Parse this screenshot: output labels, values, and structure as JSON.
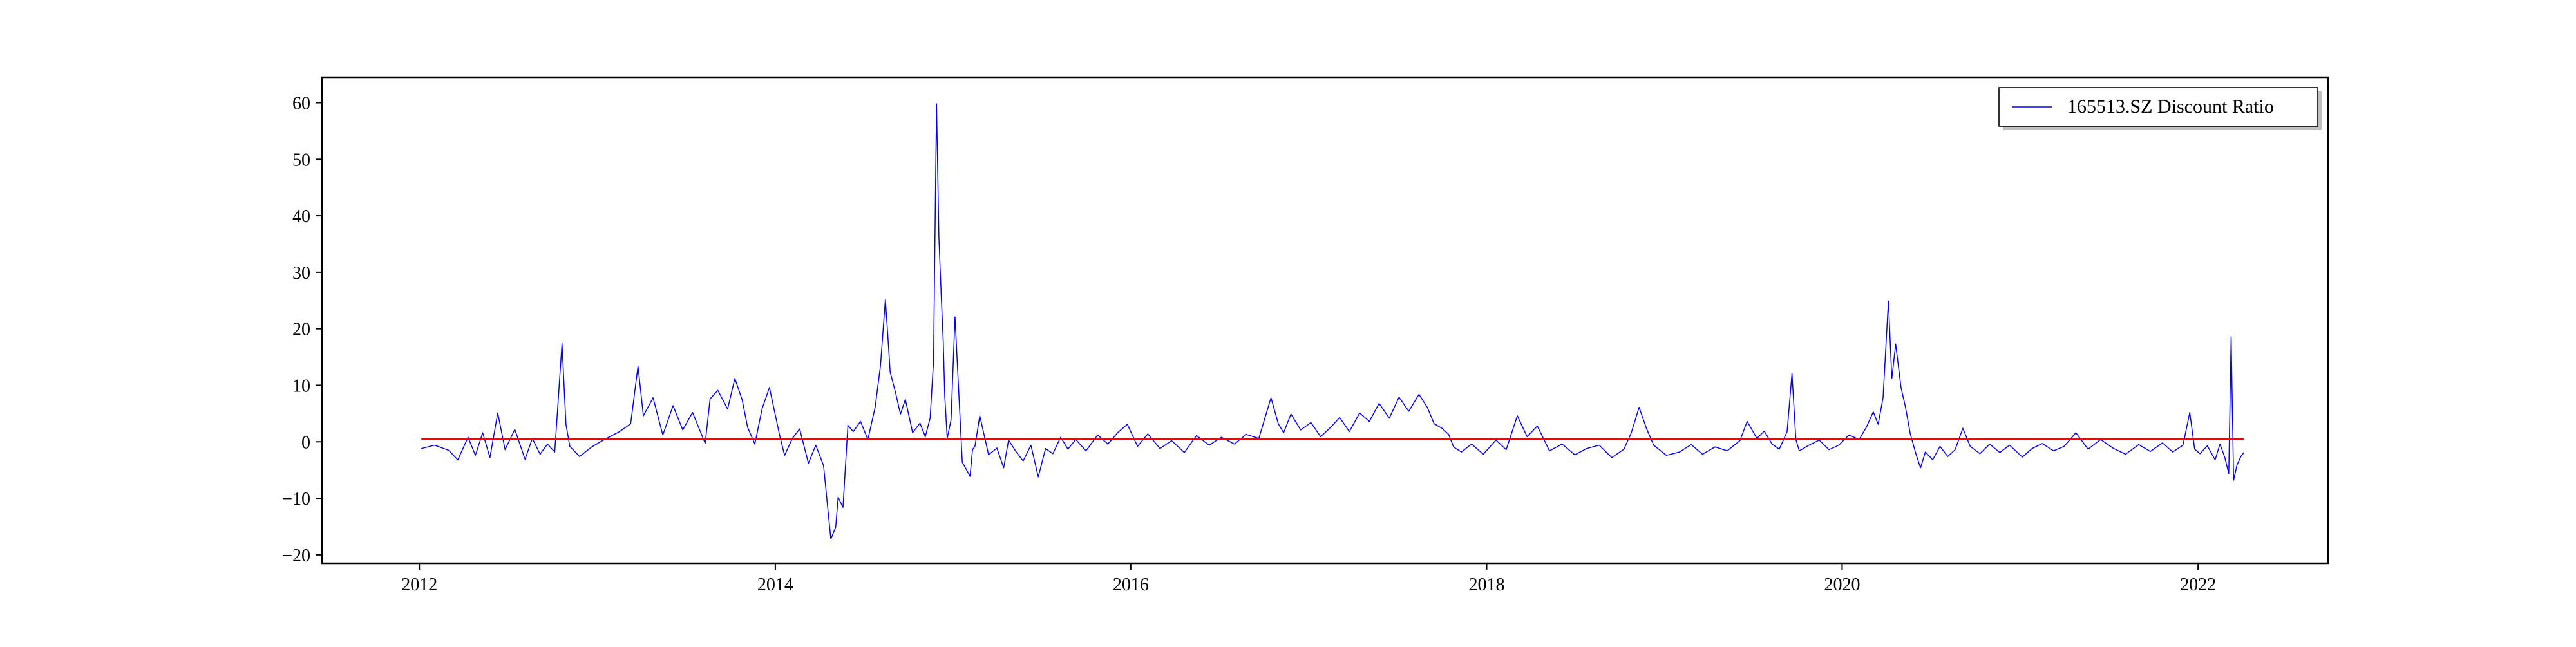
{
  "chart_data": {
    "type": "line",
    "title": "",
    "xlabel": "",
    "ylabel": "",
    "xlim": [
      "2011-06-15",
      "2022-09-25"
    ],
    "ylim": [
      -21.5,
      64.5
    ],
    "xticks": [
      {
        "date": "2012-01-01",
        "label": "2012"
      },
      {
        "date": "2014-01-01",
        "label": "2014"
      },
      {
        "date": "2016-01-01",
        "label": "2016"
      },
      {
        "date": "2018-01-01",
        "label": "2018"
      },
      {
        "date": "2020-01-01",
        "label": "2020"
      },
      {
        "date": "2022-01-01",
        "label": "2022"
      }
    ],
    "yticks": [
      -20,
      -10,
      0,
      10,
      20,
      30,
      40,
      50,
      60
    ],
    "ytick_labels": [
      "−20",
      "−10",
      "0",
      "10",
      "20",
      "30",
      "40",
      "50",
      "60"
    ],
    "grid": false,
    "legend": {
      "position": "top-right",
      "entries": [
        "165513.SZ Discount Ratio"
      ]
    },
    "series": [
      {
        "name": "165513.SZ Discount Ratio",
        "color": "#0000ff",
        "x": [
          "2012-01-05",
          "2012-02-01",
          "2012-03-01",
          "2012-03-20",
          "2012-04-10",
          "2012-04-25",
          "2012-05-10",
          "2012-05-25",
          "2012-06-10",
          "2012-06-25",
          "2012-07-15",
          "2012-08-05",
          "2012-08-20",
          "2012-09-05",
          "2012-09-20",
          "2012-10-05",
          "2012-10-20",
          "2012-10-28",
          "2012-11-05",
          "2012-11-25",
          "2012-12-20",
          "2013-01-15",
          "2013-02-15",
          "2013-03-10",
          "2013-03-25",
          "2013-04-05",
          "2013-04-25",
          "2013-05-15",
          "2013-06-05",
          "2013-06-25",
          "2013-07-15",
          "2013-08-10",
          "2013-08-20",
          "2013-09-05",
          "2013-09-25",
          "2013-10-10",
          "2013-10-25",
          "2013-11-05",
          "2013-11-20",
          "2013-12-05",
          "2013-12-20",
          "2014-01-10",
          "2014-01-20",
          "2014-02-05",
          "2014-02-20",
          "2014-03-10",
          "2014-03-25",
          "2014-04-10",
          "2014-04-25",
          "2014-05-05",
          "2014-05-10",
          "2014-05-20",
          "2014-05-30",
          "2014-06-10",
          "2014-06-25",
          "2014-07-10",
          "2014-07-25",
          "2014-08-05",
          "2014-08-15",
          "2014-08-25",
          "2014-09-05",
          "2014-09-15",
          "2014-09-25",
          "2014-10-10",
          "2014-10-25",
          "2014-11-05",
          "2014-11-15",
          "2014-11-22",
          "2014-11-28",
          "2014-12-03",
          "2014-12-08",
          "2014-12-12",
          "2014-12-15",
          "2014-12-20",
          "2014-12-28",
          "2015-01-05",
          "2015-01-20",
          "2015-02-05",
          "2015-02-10",
          "2015-02-15",
          "2015-02-25",
          "2015-03-15",
          "2015-04-01",
          "2015-04-15",
          "2015-04-25",
          "2015-05-10",
          "2015-05-25",
          "2015-06-10",
          "2015-06-25",
          "2015-07-10",
          "2015-07-25",
          "2015-08-10",
          "2015-08-25",
          "2015-09-10",
          "2015-10-01",
          "2015-10-25",
          "2015-11-15",
          "2015-12-05",
          "2015-12-25",
          "2016-01-15",
          "2016-02-05",
          "2016-03-01",
          "2016-03-25",
          "2016-04-20",
          "2016-05-15",
          "2016-06-10",
          "2016-07-05",
          "2016-08-01",
          "2016-08-25",
          "2016-09-20",
          "2016-10-15",
          "2016-10-30",
          "2016-11-10",
          "2016-11-25",
          "2016-12-15",
          "2017-01-05",
          "2017-01-25",
          "2017-02-15",
          "2017-03-05",
          "2017-03-25",
          "2017-04-15",
          "2017-05-05",
          "2017-05-25",
          "2017-06-15",
          "2017-07-05",
          "2017-07-25",
          "2017-08-15",
          "2017-09-01",
          "2017-09-15",
          "2017-10-01",
          "2017-10-15",
          "2017-10-25",
          "2017-11-10",
          "2017-12-01",
          "2017-12-25",
          "2018-01-20",
          "2018-02-10",
          "2018-03-05",
          "2018-03-25",
          "2018-04-15",
          "2018-05-10",
          "2018-06-05",
          "2018-07-01",
          "2018-07-25",
          "2018-08-20",
          "2018-09-15",
          "2018-10-10",
          "2018-10-25",
          "2018-11-10",
          "2018-11-25",
          "2018-12-10",
          "2019-01-05",
          "2019-02-01",
          "2019-02-25",
          "2019-03-20",
          "2019-04-15",
          "2019-05-10",
          "2019-06-05",
          "2019-06-20",
          "2019-07-10",
          "2019-07-25",
          "2019-08-10",
          "2019-08-25",
          "2019-09-10",
          "2019-09-20",
          "2019-09-28",
          "2019-10-05",
          "2019-10-25",
          "2019-11-15",
          "2019-12-05",
          "2019-12-25",
          "2020-01-15",
          "2020-02-05",
          "2020-02-20",
          "2020-03-05",
          "2020-03-15",
          "2020-03-25",
          "2020-04-05",
          "2020-04-12",
          "2020-04-20",
          "2020-05-01",
          "2020-05-10",
          "2020-05-20",
          "2020-06-01",
          "2020-06-10",
          "2020-06-20",
          "2020-07-05",
          "2020-07-20",
          "2020-08-05",
          "2020-08-20",
          "2020-09-05",
          "2020-09-20",
          "2020-10-10",
          "2020-10-30",
          "2020-11-20",
          "2020-12-10",
          "2021-01-05",
          "2021-01-25",
          "2021-02-15",
          "2021-03-10",
          "2021-04-01",
          "2021-04-25",
          "2021-05-20",
          "2021-06-15",
          "2021-07-10",
          "2021-08-05",
          "2021-09-01",
          "2021-09-25",
          "2021-10-20",
          "2021-11-10",
          "2021-12-01",
          "2021-12-15",
          "2021-12-25",
          "2022-01-05",
          "2022-01-20",
          "2022-02-05",
          "2022-02-15",
          "2022-02-25",
          "2022-03-05",
          "2022-03-10",
          "2022-03-15",
          "2022-03-22",
          "2022-03-30",
          "2022-04-05"
        ],
        "y": [
          -1.2,
          -0.6,
          -1.5,
          -3.2,
          0.8,
          -2.4,
          1.6,
          -2.8,
          5.1,
          -1.4,
          2.2,
          -3.1,
          0.6,
          -2.2,
          -0.4,
          -1.8,
          17.4,
          3.1,
          -0.8,
          -2.6,
          -0.9,
          0.4,
          1.8,
          3.2,
          13.4,
          4.6,
          7.8,
          1.2,
          6.4,
          2.1,
          5.2,
          -0.3,
          7.6,
          9.1,
          5.8,
          11.2,
          7.4,
          2.6,
          -0.4,
          5.9,
          9.6,
          1.1,
          -2.4,
          0.6,
          2.3,
          -3.8,
          -0.6,
          -4.2,
          -17.2,
          -15.1,
          -9.8,
          -11.6,
          2.9,
          1.8,
          3.6,
          0.4,
          6.1,
          13.5,
          25.2,
          12.3,
          8.7,
          4.9,
          7.5,
          1.6,
          3.3,
          0.9,
          4.2,
          14.3,
          59.8,
          36.2,
          25.4,
          17.6,
          8.1,
          0.6,
          3.9,
          22.1,
          -3.6,
          -6.1,
          -1.4,
          -0.8,
          4.6,
          -2.3,
          -1.1,
          -4.6,
          0.3,
          -1.7,
          -3.4,
          -0.6,
          -6.2,
          -1.2,
          -2.1,
          0.8,
          -1.3,
          0.4,
          -1.6,
          1.2,
          -0.4,
          1.6,
          3.1,
          -0.8,
          1.4,
          -1.2,
          0.2,
          -1.9,
          1.1,
          -0.6,
          0.8,
          -0.4,
          1.3,
          0.6,
          7.8,
          3.2,
          1.6,
          4.9,
          2.1,
          3.4,
          0.9,
          2.6,
          4.3,
          1.8,
          5.1,
          3.6,
          6.8,
          4.2,
          7.9,
          5.4,
          8.4,
          6.1,
          3.2,
          2.4,
          1.3,
          -0.9,
          -1.8,
          -0.4,
          -2.2,
          0.3,
          -1.4,
          4.6,
          0.9,
          2.8,
          -1.6,
          -0.4,
          -2.3,
          -1.2,
          -0.6,
          -2.8,
          -1.3,
          1.6,
          6.1,
          2.4,
          -0.6,
          -2.4,
          -1.8,
          -0.5,
          -2.2,
          -0.9,
          -1.6,
          0.2,
          3.6,
          0.6,
          1.9,
          -0.4,
          -1.3,
          1.8,
          12.1,
          0.4,
          -1.6,
          -0.6,
          0.3,
          -1.4,
          -0.6,
          1.2,
          0.4,
          2.6,
          5.3,
          3.1,
          7.8,
          24.9,
          11.2,
          17.3,
          9.6,
          6.2,
          1.4,
          -2.3,
          -4.6,
          -1.8,
          -3.2,
          -0.8,
          -2.6,
          -1.4,
          2.4,
          -0.8,
          -2.1,
          -0.4,
          -1.9,
          -0.6,
          -2.7,
          -1.2,
          -0.3,
          -1.6,
          -0.8,
          1.6,
          -1.3,
          0.4,
          -1.1,
          -2.2,
          -0.5,
          -1.7,
          -0.2,
          -1.8,
          -0.6,
          5.2,
          -1.3,
          -2.1,
          -0.7,
          -3.2,
          -0.4,
          -2.8,
          -5.6,
          18.6,
          -6.8,
          -4.1,
          -2.6,
          -1.9
        ]
      },
      {
        "name": "",
        "color": "#ff0000",
        "x": [
          "2012-01-05",
          "2022-04-05"
        ],
        "y": [
          0.5,
          0.5
        ]
      }
    ]
  }
}
